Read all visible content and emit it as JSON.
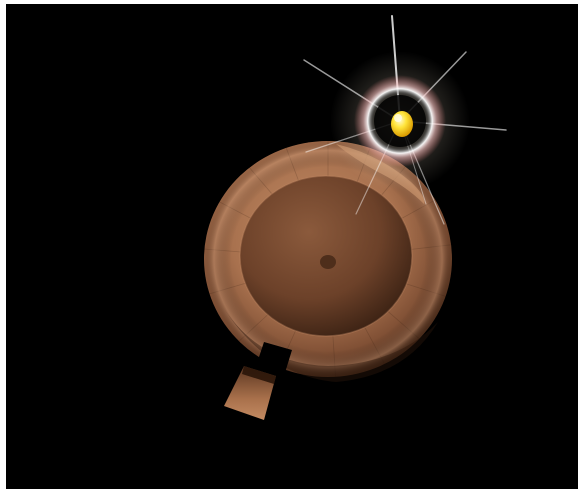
{
  "scene": {
    "background_color": "#000000",
    "frame_color": "#ffffff",
    "disc_color": "#b07a57",
    "disc_shadow_color": "#4a2d1c",
    "light_color": "#ffe43a",
    "halo_color": "#ffffff",
    "halo_tint_color": "#ff9a9a",
    "glare_color": "#fff6e6",
    "icons": [
      "light-source-icon"
    ]
  }
}
